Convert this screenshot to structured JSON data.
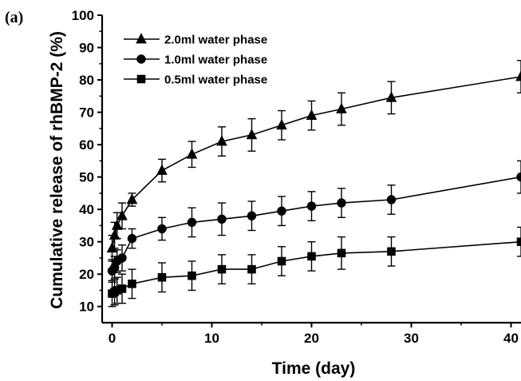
{
  "panel_label": "(a)",
  "chart_data": {
    "type": "line",
    "xlabel": "Time (day)",
    "ylabel": "Cumulative release of rhBMP-2 (%)",
    "xlim": [
      -1,
      41
    ],
    "ylim": [
      5,
      100
    ],
    "xticks": [
      0,
      10,
      20,
      30,
      40
    ],
    "xtick_labels": [
      "0",
      "10",
      "20",
      "30",
      "40"
    ],
    "yticks": [
      10,
      20,
      30,
      40,
      50,
      60,
      70,
      80,
      90,
      100
    ],
    "ytick_labels": [
      "10",
      "20",
      "30",
      "40",
      "50",
      "60",
      "70",
      "80",
      "90",
      "100"
    ],
    "legend_position": "top-left",
    "grid": false,
    "x": [
      0,
      0.25,
      0.5,
      1,
      2,
      5,
      8,
      11,
      14,
      17,
      20,
      23,
      28,
      41
    ],
    "series": [
      {
        "name": "2.0ml water phase",
        "marker": "triangle",
        "values": [
          28,
          32,
          35,
          38,
          43,
          52,
          57,
          61,
          63,
          66,
          69,
          71,
          74.5,
          81
        ],
        "errors": [
          4,
          4,
          4,
          4,
          2,
          3.5,
          4,
          4.5,
          5,
          4.5,
          4.5,
          5,
          5,
          5
        ]
      },
      {
        "name": "1.0ml water phase",
        "marker": "circle",
        "values": [
          21,
          22,
          24,
          25,
          31,
          34,
          36,
          37,
          38,
          39.5,
          41,
          42,
          43,
          50
        ],
        "errors": [
          3.5,
          3.5,
          3.5,
          4,
          3,
          3.5,
          4.5,
          5,
          4.5,
          4.5,
          4.5,
          4.5,
          4.5,
          5
        ]
      },
      {
        "name": "0.5ml water phase",
        "marker": "square",
        "values": [
          14,
          14.5,
          15,
          15.5,
          17,
          19,
          19.5,
          21.5,
          21.5,
          24,
          25.5,
          26.5,
          27,
          30
        ],
        "errors": [
          4,
          4,
          4,
          4.5,
          4.5,
          4.5,
          4.5,
          4.5,
          4.5,
          4.5,
          4.5,
          5,
          4.5,
          4.5
        ]
      }
    ]
  }
}
